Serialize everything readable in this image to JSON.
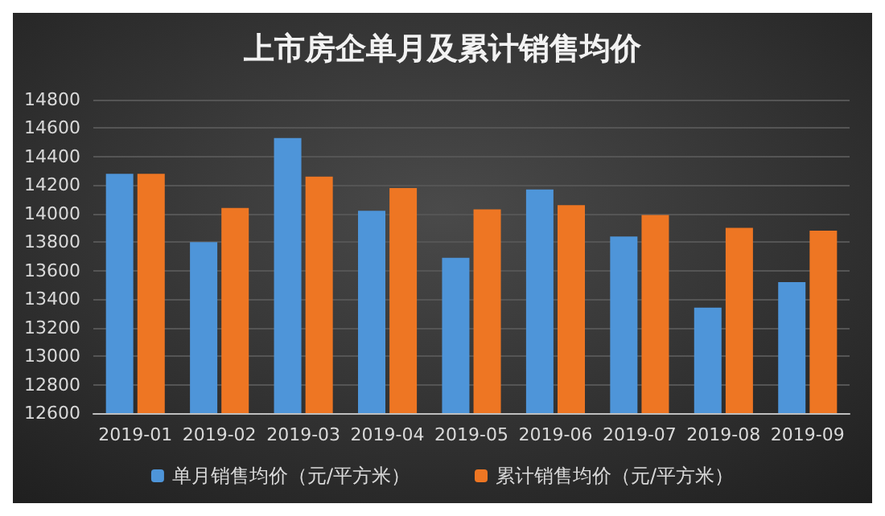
{
  "chart_data": {
    "type": "bar",
    "title": "上市房企单月及累计销售均价",
    "categories": [
      "2019-01",
      "2019-02",
      "2019-03",
      "2019-04",
      "2019-05",
      "2019-06",
      "2019-07",
      "2019-08",
      "2019-09"
    ],
    "series": [
      {
        "name": "单月销售均价（元/平方米）",
        "color": "#4e95d9",
        "values": [
          14280,
          13800,
          14530,
          14020,
          13690,
          14170,
          13840,
          13340,
          13520
        ]
      },
      {
        "name": "累计销售均价（元/平方米）",
        "color": "#ee7623",
        "values": [
          14280,
          14040,
          14260,
          14180,
          14030,
          14060,
          13990,
          13900,
          13880
        ]
      }
    ],
    "ylim": [
      12600,
      14800
    ],
    "yticks": [
      12600,
      12800,
      13000,
      13200,
      13400,
      13600,
      13800,
      14000,
      14200,
      14400,
      14600,
      14800
    ],
    "grid": "y",
    "legend": "bottom"
  }
}
